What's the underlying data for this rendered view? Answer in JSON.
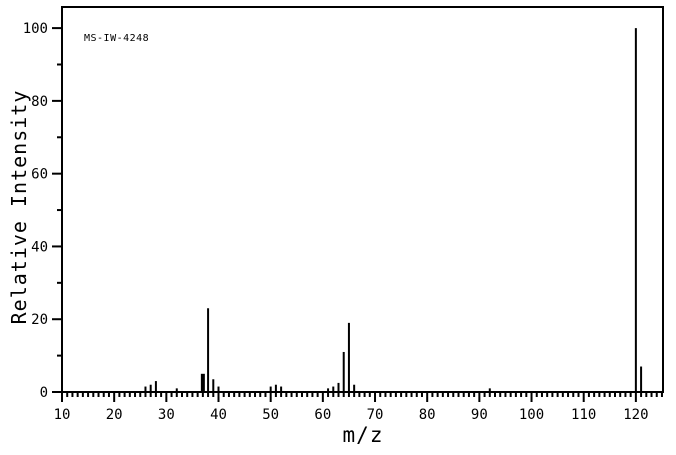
{
  "header": {
    "spectrum_id": "MS-IW-4248"
  },
  "chart_data": {
    "type": "bar",
    "subtype": "mass-spectrum-stick-plot",
    "title": "",
    "xlabel": "m/z",
    "ylabel": "Relative Intensity",
    "xlim": [
      10,
      125.2
    ],
    "ylim": [
      0,
      105.8
    ],
    "x_major_ticks": [
      10,
      20,
      30,
      40,
      50,
      60,
      70,
      80,
      90,
      100,
      110,
      120
    ],
    "x_minor_tick_step": 1,
    "y_major_ticks": [
      0,
      20,
      40,
      60,
      80,
      100
    ],
    "y_minor_tick_step": 10,
    "grid": false,
    "legend": false,
    "colors": {
      "line": "#000000",
      "background": "#ffffff"
    },
    "peaks": [
      {
        "m": 26,
        "i": 1.5
      },
      {
        "m": 27,
        "i": 2
      },
      {
        "m": 28,
        "i": 3
      },
      {
        "m": 32,
        "i": 1
      },
      {
        "m": 37,
        "i": 5,
        "w": 4
      },
      {
        "m": 38,
        "i": 23
      },
      {
        "m": 39,
        "i": 3.5
      },
      {
        "m": 40,
        "i": 1.5
      },
      {
        "m": 50,
        "i": 1.5
      },
      {
        "m": 51,
        "i": 2
      },
      {
        "m": 52,
        "i": 1.5
      },
      {
        "m": 61,
        "i": 1
      },
      {
        "m": 62,
        "i": 1.5
      },
      {
        "m": 63,
        "i": 2.5
      },
      {
        "m": 64,
        "i": 11
      },
      {
        "m": 65,
        "i": 19
      },
      {
        "m": 66,
        "i": 2
      },
      {
        "m": 92,
        "i": 1
      },
      {
        "m": 120,
        "i": 100
      },
      {
        "m": 121,
        "i": 7
      }
    ]
  }
}
